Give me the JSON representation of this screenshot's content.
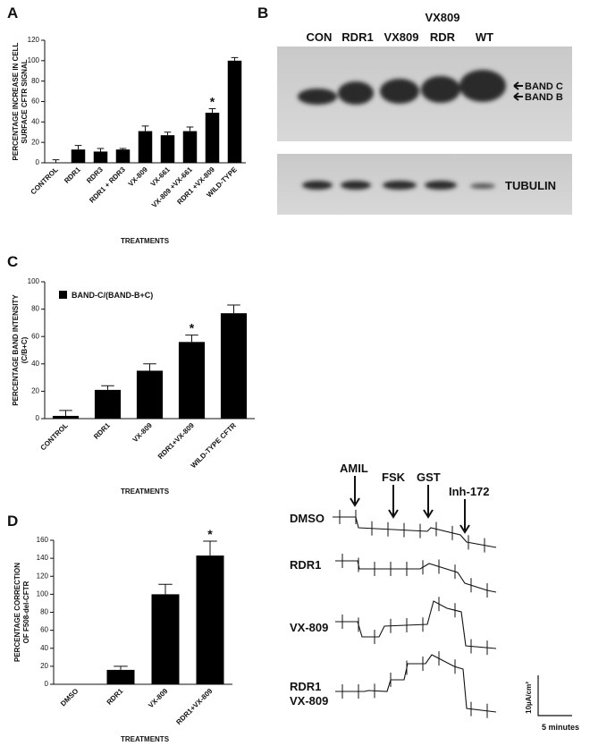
{
  "panels": [
    "A",
    "B",
    "C",
    "D"
  ],
  "chart_data": [
    {
      "type": "bar",
      "ylabel": [
        "PERCENTAGE INCREASE IN CELL",
        "SURFACE CFTR SIGNAL"
      ],
      "xlabel": "TREATMENTS",
      "categories": [
        "CONTROL",
        "RDR1",
        "RDR3",
        "RDR1 + RDR3",
        "VX-809",
        "VX-661",
        "VX-809 +VX-661",
        "RDR1 +VX-809",
        "WILD-TYPE"
      ],
      "values": [
        0,
        13,
        11,
        13,
        31,
        27,
        31,
        49,
        100
      ],
      "errors": [
        3,
        4,
        3,
        1,
        5,
        3,
        4,
        4,
        3
      ],
      "color": "#000000",
      "annotations": [
        {
          "text": "*",
          "category": "RDR1 +VX-809"
        }
      ],
      "ylim": [
        0,
        120
      ],
      "yticks": [
        0,
        20,
        40,
        60,
        80,
        100,
        120
      ]
    },
    {
      "type": "bar",
      "ylabel": [
        "PERCENTAGE BAND INTENSITY",
        "(C/B+C)"
      ],
      "xlabel": "TREATMENTS",
      "categories": [
        "CONTROL",
        "RDR1",
        "VX-809",
        "RDR1+VX-809",
        "WILD-TYPE CFTR"
      ],
      "series": [
        {
          "name": "BAND-C/(BAND-B+C)",
          "color": "#000000",
          "values": [
            2,
            21,
            35,
            56,
            77
          ],
          "errors": [
            4,
            3,
            5,
            5,
            6
          ]
        }
      ],
      "annotations": [
        {
          "text": "*",
          "category": "RDR1+VX-809"
        }
      ],
      "ylim": [
        0,
        100
      ],
      "yticks": [
        0,
        20,
        40,
        60,
        80,
        100
      ]
    },
    {
      "type": "bar",
      "ylabel": [
        "PERCENTAGE CORRECTION",
        "OF F508-del-CFTR"
      ],
      "xlabel": "TREATMENTS",
      "categories": [
        "DMSO",
        "RDR1",
        "VX-809",
        "RDR1+VX-809"
      ],
      "values": [
        0,
        16,
        100,
        143
      ],
      "errors": [
        0,
        4,
        11,
        16
      ],
      "color": "#000000",
      "annotations": [
        {
          "text": "*",
          "category": "RDR1+VX-809"
        }
      ],
      "ylim": [
        0,
        160
      ],
      "yticks": [
        0,
        20,
        40,
        60,
        80,
        100,
        120,
        140,
        160
      ]
    }
  ],
  "blot": {
    "lanes": [
      "CON",
      "RDR1",
      "VX809",
      "RDR",
      "WT"
    ],
    "lane_header": "VX809",
    "bands": [
      "BAND C",
      "BAND B"
    ],
    "loading": "TUBULIN"
  },
  "traces": {
    "drugs": [
      "AMIL",
      "FSK",
      "GST",
      "Inh-172"
    ],
    "conditions": [
      [
        "DMSO"
      ],
      [
        "RDR1"
      ],
      [
        "VX-809"
      ],
      [
        "RDR1",
        "VX-809"
      ]
    ],
    "scale_current": "10µA/cm²",
    "scale_time": "5 minutes"
  }
}
